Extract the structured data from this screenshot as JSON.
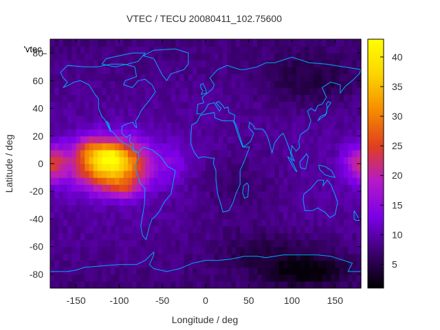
{
  "chart_data": {
    "type": "heatmap",
    "title": "VTEC / TECU 20080411_102.75600",
    "xlabel": "Longitude / deg",
    "ylabel": "Latitude / deg",
    "xlim": [
      -180,
      180
    ],
    "ylim": [
      -90,
      90
    ],
    "xticks": [
      -150,
      -100,
      -50,
      0,
      50,
      100,
      150
    ],
    "yticks": [
      -80,
      -60,
      -40,
      -20,
      0,
      20,
      40,
      60,
      80
    ],
    "colorbar": {
      "range": [
        1,
        43
      ],
      "ticks": [
        5,
        10,
        15,
        20,
        25,
        30,
        35,
        40
      ],
      "colors": [
        "#000000",
        "#3c0070",
        "#7a00e6",
        "#b41ac8",
        "#e0401e",
        "#f58c00",
        "#fcd400",
        "#ffff00"
      ]
    },
    "legend_label": "'vtec_",
    "overlay_color": "#00aaff",
    "grid": false,
    "values_description": "approximate VTEC in TECU on a 5-degree grid; equatorial anomaly peak near lon -110, lat 0 (about 43 TECU)"
  }
}
